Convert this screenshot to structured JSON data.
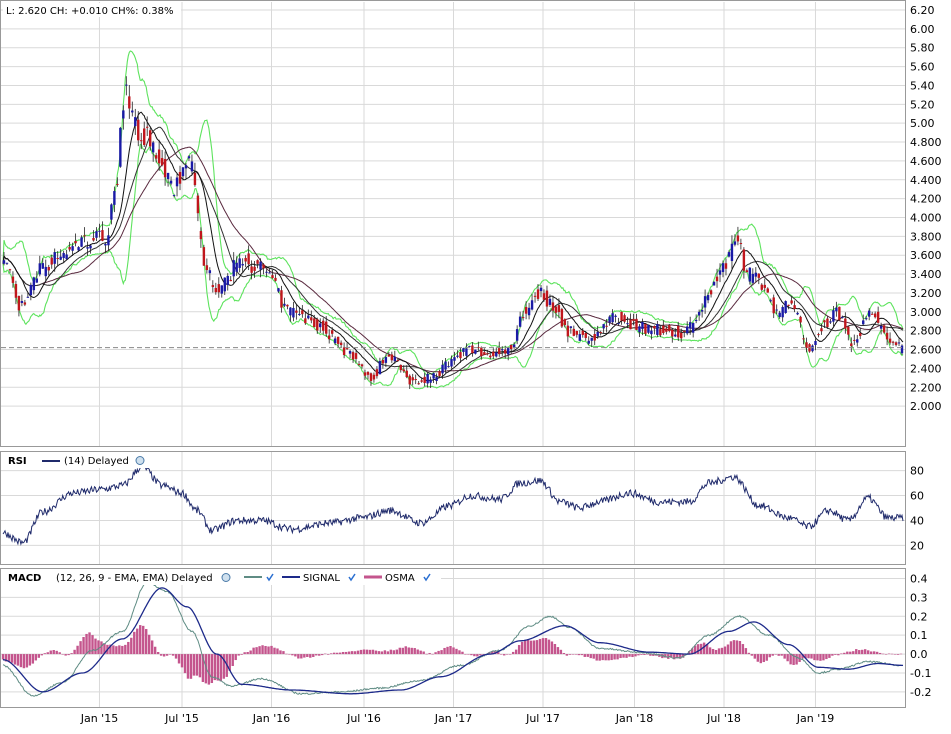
{
  "quote": {
    "text": "L: 2.620 CH: +0.010 CH%: 0.38%"
  },
  "colors": {
    "up": "#1a1aa6",
    "down": "#c0161c",
    "bollinger": "#5de35d",
    "sma_fast": "#111111",
    "sma_mid": "#333333",
    "sma_slow": "#5a2a3f",
    "rsi_line": "#1f2a6b",
    "macd_line": "#5f8c84",
    "signal_line": "#1d2a8a",
    "osma_bar": "#c4558d",
    "grid": "#d9d9d9",
    "last_price_line": "#888888"
  },
  "panels": {
    "rsi": {
      "name": "RSI",
      "params": "(14) Delayed"
    },
    "macd": {
      "name": "MACD",
      "params": "(12, 26, 9 - EMA, EMA) Delayed",
      "legend": [
        {
          "name": "SIGNAL"
        },
        {
          "name": "OSMA"
        }
      ]
    }
  },
  "x_ticks": [
    "Jan '15",
    "Jul '15",
    "Jan '16",
    "Jul '16",
    "Jan '17",
    "Jul '17",
    "Jan '18",
    "Jul '18",
    "Jan '19"
  ],
  "chart_data": [
    {
      "type": "candlestick",
      "title": "",
      "ylim": [
        1.8,
        6.2
      ],
      "y_ticks": [
        "6.20",
        "6.00",
        "5.80",
        "5.60",
        "5.40",
        "5.20",
        "5.00",
        "4.800",
        "4.600",
        "4.400",
        "4.200",
        "4.000",
        "3.800",
        "3.600",
        "3.400",
        "3.200",
        "3.000",
        "2.800",
        "2.600",
        "2.400",
        "2.200",
        "2.000"
      ],
      "last_price": 2.62,
      "close_anchors": [
        {
          "t": 0,
          "v": 3.6
        },
        {
          "t": 20,
          "v": 3.05
        },
        {
          "t": 40,
          "v": 3.45
        },
        {
          "t": 60,
          "v": 3.6
        },
        {
          "t": 85,
          "v": 3.75
        },
        {
          "t": 105,
          "v": 3.8
        },
        {
          "t": 115,
          "v": 4.4
        },
        {
          "t": 123,
          "v": 5.3
        },
        {
          "t": 140,
          "v": 4.9
        },
        {
          "t": 160,
          "v": 4.6
        },
        {
          "t": 170,
          "v": 4.3
        },
        {
          "t": 190,
          "v": 4.6
        },
        {
          "t": 205,
          "v": 3.4
        },
        {
          "t": 220,
          "v": 3.25
        },
        {
          "t": 240,
          "v": 3.55
        },
        {
          "t": 262,
          "v": 3.45
        },
        {
          "t": 290,
          "v": 3.0
        },
        {
          "t": 320,
          "v": 2.85
        },
        {
          "t": 345,
          "v": 2.6
        },
        {
          "t": 370,
          "v": 2.3
        },
        {
          "t": 390,
          "v": 2.55
        },
        {
          "t": 410,
          "v": 2.28
        },
        {
          "t": 430,
          "v": 2.3
        },
        {
          "t": 450,
          "v": 2.45
        },
        {
          "t": 470,
          "v": 2.6
        },
        {
          "t": 490,
          "v": 2.55
        },
        {
          "t": 510,
          "v": 2.6
        },
        {
          "t": 525,
          "v": 3.0
        },
        {
          "t": 540,
          "v": 3.2
        },
        {
          "t": 555,
          "v": 3.05
        },
        {
          "t": 570,
          "v": 2.8
        },
        {
          "t": 590,
          "v": 2.7
        },
        {
          "t": 605,
          "v": 2.85
        },
        {
          "t": 620,
          "v": 2.95
        },
        {
          "t": 640,
          "v": 2.85
        },
        {
          "t": 660,
          "v": 2.8
        },
        {
          "t": 680,
          "v": 2.78
        },
        {
          "t": 695,
          "v": 2.85
        },
        {
          "t": 710,
          "v": 3.2
        },
        {
          "t": 725,
          "v": 3.45
        },
        {
          "t": 740,
          "v": 3.75
        },
        {
          "t": 750,
          "v": 3.4
        },
        {
          "t": 765,
          "v": 3.3
        },
        {
          "t": 780,
          "v": 3.0
        },
        {
          "t": 795,
          "v": 3.1
        },
        {
          "t": 810,
          "v": 2.6
        },
        {
          "t": 825,
          "v": 2.85
        },
        {
          "t": 840,
          "v": 3.0
        },
        {
          "t": 855,
          "v": 2.7
        },
        {
          "t": 870,
          "v": 2.9
        },
        {
          "t": 875,
          "v": 3.05
        },
        {
          "t": 890,
          "v": 2.7
        },
        {
          "t": 905,
          "v": 2.62
        }
      ]
    },
    {
      "type": "line",
      "name": "RSI",
      "ylim": [
        5,
        95
      ],
      "y_ticks": [
        80,
        60,
        40,
        20
      ],
      "anchors": [
        {
          "t": 0,
          "v": 30
        },
        {
          "t": 20,
          "v": 22
        },
        {
          "t": 40,
          "v": 47
        },
        {
          "t": 70,
          "v": 62
        },
        {
          "t": 100,
          "v": 65
        },
        {
          "t": 120,
          "v": 68
        },
        {
          "t": 140,
          "v": 83
        },
        {
          "t": 160,
          "v": 68
        },
        {
          "t": 180,
          "v": 62
        },
        {
          "t": 195,
          "v": 48
        },
        {
          "t": 210,
          "v": 32
        },
        {
          "t": 235,
          "v": 40
        },
        {
          "t": 260,
          "v": 40
        },
        {
          "t": 290,
          "v": 33
        },
        {
          "t": 330,
          "v": 38
        },
        {
          "t": 360,
          "v": 42
        },
        {
          "t": 390,
          "v": 48
        },
        {
          "t": 420,
          "v": 38
        },
        {
          "t": 450,
          "v": 52
        },
        {
          "t": 470,
          "v": 60
        },
        {
          "t": 500,
          "v": 57
        },
        {
          "t": 520,
          "v": 70
        },
        {
          "t": 540,
          "v": 72
        },
        {
          "t": 560,
          "v": 55
        },
        {
          "t": 580,
          "v": 50
        },
        {
          "t": 600,
          "v": 55
        },
        {
          "t": 630,
          "v": 62
        },
        {
          "t": 660,
          "v": 55
        },
        {
          "t": 690,
          "v": 55
        },
        {
          "t": 710,
          "v": 70
        },
        {
          "t": 735,
          "v": 75
        },
        {
          "t": 760,
          "v": 52
        },
        {
          "t": 790,
          "v": 42
        },
        {
          "t": 810,
          "v": 35
        },
        {
          "t": 830,
          "v": 48
        },
        {
          "t": 850,
          "v": 40
        },
        {
          "t": 870,
          "v": 58
        },
        {
          "t": 890,
          "v": 42
        },
        {
          "t": 905,
          "v": 42
        }
      ]
    },
    {
      "type": "line+bar",
      "name": "MACD",
      "ylim": [
        -0.28,
        0.45
      ],
      "y_ticks": [
        0.4,
        0.3,
        0.2,
        0.1,
        0.0,
        -0.1,
        -0.2
      ],
      "macd_anchors": [
        {
          "t": 0,
          "v": -0.06
        },
        {
          "t": 30,
          "v": -0.22
        },
        {
          "t": 60,
          "v": -0.15
        },
        {
          "t": 90,
          "v": 0.02
        },
        {
          "t": 120,
          "v": 0.12
        },
        {
          "t": 145,
          "v": 0.38
        },
        {
          "t": 165,
          "v": 0.33
        },
        {
          "t": 190,
          "v": 0.12
        },
        {
          "t": 210,
          "v": -0.12
        },
        {
          "t": 230,
          "v": -0.17
        },
        {
          "t": 260,
          "v": -0.13
        },
        {
          "t": 300,
          "v": -0.21
        },
        {
          "t": 340,
          "v": -0.2
        },
        {
          "t": 380,
          "v": -0.18
        },
        {
          "t": 420,
          "v": -0.14
        },
        {
          "t": 460,
          "v": -0.06
        },
        {
          "t": 500,
          "v": 0.02
        },
        {
          "t": 530,
          "v": 0.15
        },
        {
          "t": 550,
          "v": 0.2
        },
        {
          "t": 570,
          "v": 0.14
        },
        {
          "t": 600,
          "v": 0.03
        },
        {
          "t": 640,
          "v": 0.01
        },
        {
          "t": 680,
          "v": -0.02
        },
        {
          "t": 710,
          "v": 0.1
        },
        {
          "t": 740,
          "v": 0.2
        },
        {
          "t": 770,
          "v": 0.1
        },
        {
          "t": 800,
          "v": -0.02
        },
        {
          "t": 820,
          "v": -0.1
        },
        {
          "t": 840,
          "v": -0.08
        },
        {
          "t": 870,
          "v": -0.04
        },
        {
          "t": 905,
          "v": -0.06
        }
      ],
      "signal_anchors": [
        {
          "t": 0,
          "v": -0.03
        },
        {
          "t": 40,
          "v": -0.2
        },
        {
          "t": 80,
          "v": -0.1
        },
        {
          "t": 120,
          "v": 0.08
        },
        {
          "t": 160,
          "v": 0.35
        },
        {
          "t": 185,
          "v": 0.25
        },
        {
          "t": 215,
          "v": 0.0
        },
        {
          "t": 240,
          "v": -0.16
        },
        {
          "t": 290,
          "v": -0.19
        },
        {
          "t": 350,
          "v": -0.21
        },
        {
          "t": 400,
          "v": -0.19
        },
        {
          "t": 440,
          "v": -0.12
        },
        {
          "t": 490,
          "v": 0.0
        },
        {
          "t": 520,
          "v": 0.07
        },
        {
          "t": 565,
          "v": 0.15
        },
        {
          "t": 600,
          "v": 0.06
        },
        {
          "t": 650,
          "v": 0.01
        },
        {
          "t": 690,
          "v": 0.0
        },
        {
          "t": 730,
          "v": 0.12
        },
        {
          "t": 755,
          "v": 0.17
        },
        {
          "t": 790,
          "v": 0.05
        },
        {
          "t": 820,
          "v": -0.07
        },
        {
          "t": 850,
          "v": -0.08
        },
        {
          "t": 880,
          "v": -0.05
        },
        {
          "t": 905,
          "v": -0.06
        }
      ]
    }
  ]
}
